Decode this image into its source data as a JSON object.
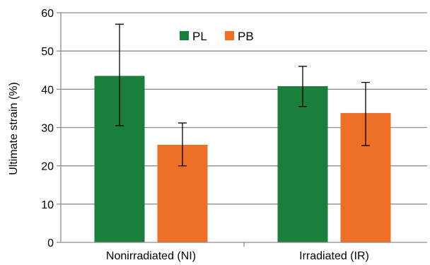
{
  "chart_data": {
    "type": "bar",
    "categories": [
      "Nonirradiated (NI)",
      "Irradiated (IR)"
    ],
    "series": [
      {
        "name": "PL",
        "color": "#1a7f3b",
        "values": [
          43.5,
          40.8
        ],
        "error_low": [
          30.5,
          35.5
        ],
        "error_high": [
          57.0,
          46.0
        ]
      },
      {
        "name": "PB",
        "color": "#ee7024",
        "values": [
          25.5,
          33.8
        ],
        "error_low": [
          20.0,
          25.3
        ],
        "error_high": [
          31.2,
          41.8
        ]
      }
    ],
    "ylabel": "Ultimate strain (%)",
    "xlabel": "",
    "ylim": [
      0,
      60
    ],
    "yticks": [
      0,
      10,
      20,
      30,
      40,
      50,
      60
    ],
    "grid": "horizontal",
    "legend_position": "top-center"
  }
}
